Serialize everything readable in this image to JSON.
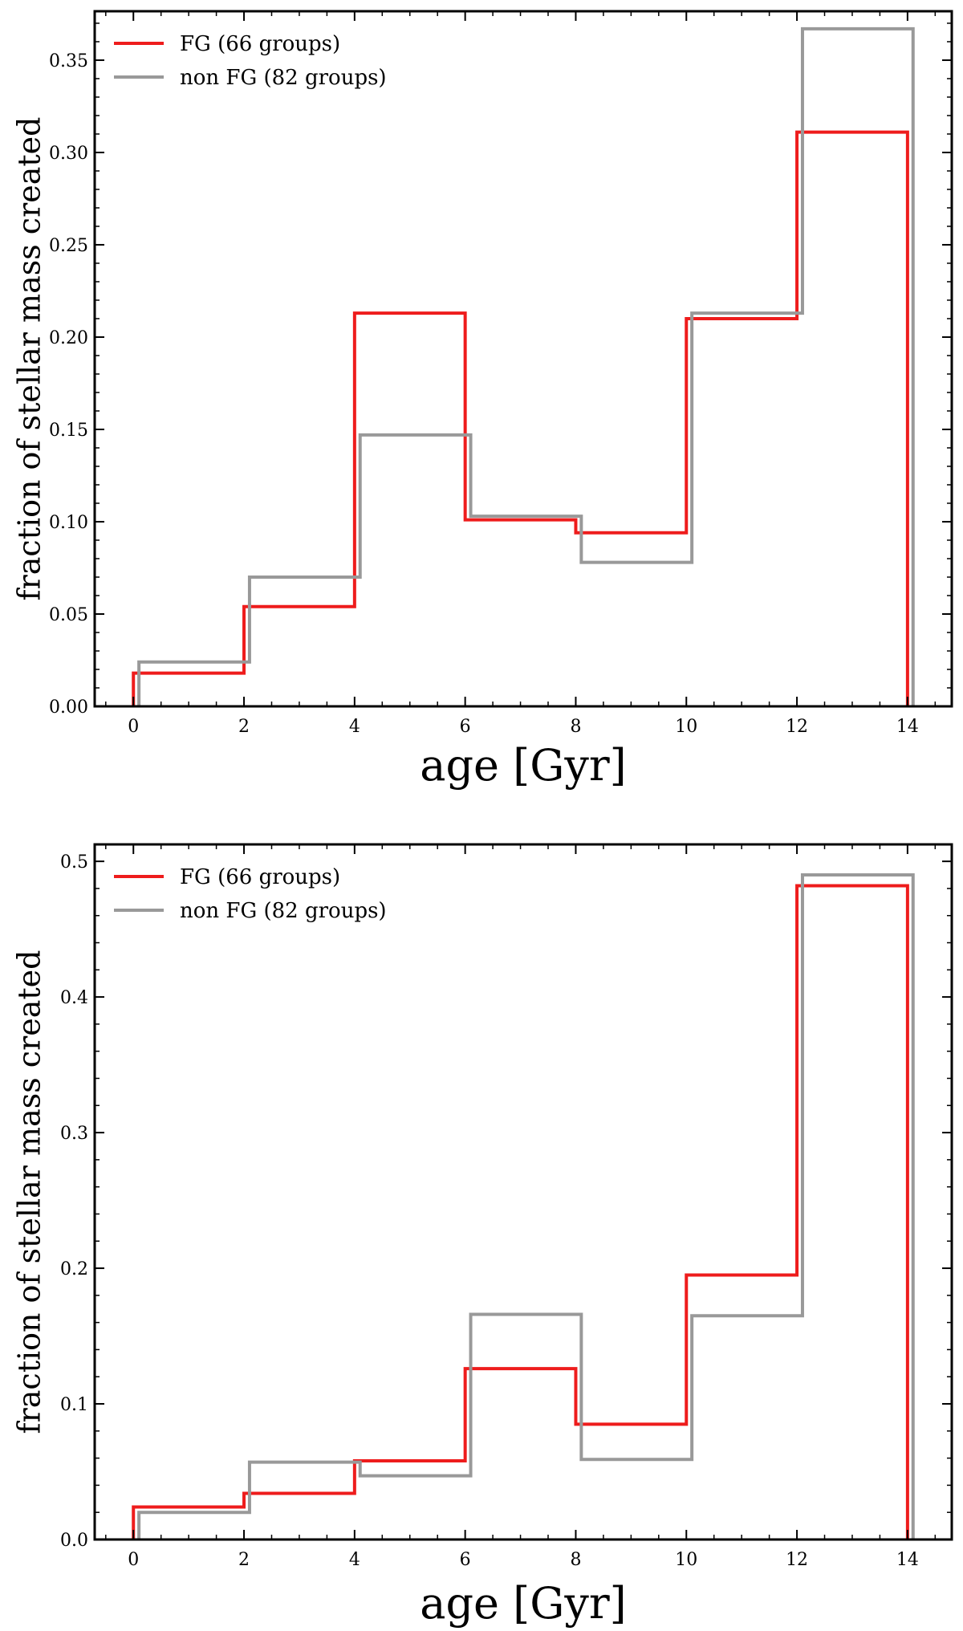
{
  "chart_data": [
    {
      "type": "step-histogram",
      "xlabel": "age [Gyr]",
      "ylabel": "fraction of stellar mass created",
      "xlim": [
        -0.7,
        14.8
      ],
      "ylim": [
        0,
        0.3765
      ],
      "xticks": [
        0,
        2,
        4,
        6,
        8,
        10,
        12,
        14
      ],
      "xtick_labels": [
        "0",
        "2",
        "4",
        "6",
        "8",
        "10",
        "12",
        "14"
      ],
      "yticks": [
        0,
        0.05,
        0.1,
        0.15,
        0.2,
        0.25,
        0.3,
        0.35
      ],
      "ytick_labels": [
        "0.00",
        "0.05",
        "0.10",
        "0.15",
        "0.20",
        "0.25",
        "0.30",
        "0.35"
      ],
      "legend": "top-left",
      "series": [
        {
          "name": "FG",
          "label": "FG  (66 groups)",
          "color": "#ee1c1c",
          "bin_edges": [
            0,
            2,
            4,
            6,
            8,
            10,
            12,
            14
          ],
          "values": [
            0.018,
            0.054,
            0.213,
            0.101,
            0.094,
            0.21,
            0.311
          ]
        },
        {
          "name": "non FG",
          "label": "non FG  (82 groups)",
          "color": "#999999",
          "bin_edges": [
            0.1,
            2.1,
            4.1,
            6.1,
            8.1,
            10.1,
            12.1,
            14.1
          ],
          "values": [
            0.024,
            0.07,
            0.147,
            0.103,
            0.078,
            0.213,
            0.367
          ]
        }
      ]
    },
    {
      "type": "step-histogram",
      "xlabel": "age [Gyr]",
      "ylabel": "fraction of stellar mass created",
      "xlim": [
        -0.7,
        14.8
      ],
      "ylim": [
        0,
        0.5125
      ],
      "xticks": [
        0,
        2,
        4,
        6,
        8,
        10,
        12,
        14
      ],
      "xtick_labels": [
        "0",
        "2",
        "4",
        "6",
        "8",
        "10",
        "12",
        "14"
      ],
      "yticks": [
        0,
        0.1,
        0.2,
        0.3,
        0.4,
        0.5
      ],
      "ytick_labels": [
        "0.0",
        "0.1",
        "0.2",
        "0.3",
        "0.4",
        "0.5"
      ],
      "legend": "top-left",
      "series": [
        {
          "name": "FG",
          "label": "FG  (66 groups)",
          "color": "#ee1c1c",
          "bin_edges": [
            0,
            2,
            4,
            6,
            8,
            10,
            12,
            14
          ],
          "values": [
            0.024,
            0.034,
            0.058,
            0.126,
            0.085,
            0.195,
            0.482
          ]
        },
        {
          "name": "non FG",
          "label": "non FG  (82 groups)",
          "color": "#999999",
          "bin_edges": [
            0.1,
            2.1,
            4.1,
            6.1,
            8.1,
            10.1,
            12.1,
            14.1
          ],
          "values": [
            0.02,
            0.057,
            0.047,
            0.166,
            0.059,
            0.165,
            0.49
          ]
        }
      ]
    }
  ]
}
